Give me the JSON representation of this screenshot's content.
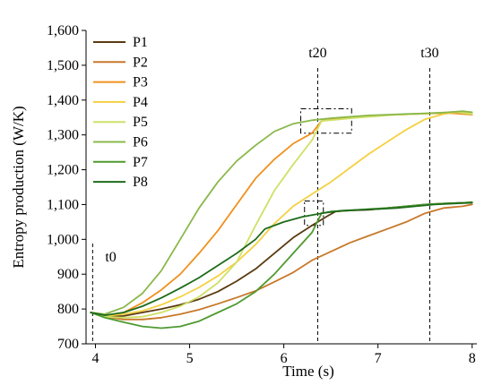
{
  "chart_data": {
    "type": "line",
    "xlabel": "Time (s)",
    "ylabel": "Entropy production (W/K)",
    "xlim": [
      3.9,
      8.05
    ],
    "ylim": [
      700,
      1600
    ],
    "x_ticks": [
      4,
      5,
      6,
      7,
      8
    ],
    "x_tick_labels": [
      "4",
      "5",
      "6",
      "7",
      "8"
    ],
    "y_ticks": [
      700,
      800,
      900,
      1000,
      1100,
      1200,
      1300,
      1400,
      1500,
      1600
    ],
    "y_tick_labels": [
      "700",
      "800",
      "900",
      "1,000",
      "1,100",
      "1,200",
      "1,300",
      "1,400",
      "1,500",
      "1,600"
    ],
    "grid": false,
    "legend_position": "top-left",
    "series": [
      {
        "name": "P1",
        "color": "#5a3a10",
        "points": [
          [
            3.95,
            790
          ],
          [
            4.1,
            778
          ],
          [
            4.3,
            780
          ],
          [
            4.5,
            790
          ],
          [
            4.7,
            800
          ],
          [
            4.9,
            812
          ],
          [
            5.1,
            828
          ],
          [
            5.3,
            850
          ],
          [
            5.5,
            880
          ],
          [
            5.7,
            915
          ],
          [
            5.9,
            960
          ],
          [
            6.1,
            1005
          ],
          [
            6.3,
            1040
          ],
          [
            6.45,
            1065
          ],
          [
            6.55,
            1080
          ],
          [
            6.7,
            1083
          ],
          [
            6.9,
            1085
          ],
          [
            7.1,
            1090
          ],
          [
            7.3,
            1095
          ],
          [
            7.5,
            1100
          ],
          [
            7.7,
            1103
          ],
          [
            7.9,
            1105
          ],
          [
            8.0,
            1106
          ]
        ]
      },
      {
        "name": "P2",
        "color": "#c8782a",
        "points": [
          [
            3.95,
            790
          ],
          [
            4.1,
            778
          ],
          [
            4.3,
            770
          ],
          [
            4.5,
            770
          ],
          [
            4.7,
            775
          ],
          [
            4.9,
            785
          ],
          [
            5.1,
            798
          ],
          [
            5.3,
            815
          ],
          [
            5.5,
            833
          ],
          [
            5.7,
            852
          ],
          [
            5.9,
            878
          ],
          [
            6.1,
            905
          ],
          [
            6.3,
            940
          ],
          [
            6.5,
            965
          ],
          [
            6.7,
            990
          ],
          [
            6.9,
            1010
          ],
          [
            7.1,
            1030
          ],
          [
            7.3,
            1050
          ],
          [
            7.5,
            1075
          ],
          [
            7.7,
            1090
          ],
          [
            7.9,
            1095
          ],
          [
            8.0,
            1100
          ]
        ]
      },
      {
        "name": "P3",
        "color": "#f0901e",
        "points": [
          [
            3.95,
            790
          ],
          [
            4.1,
            780
          ],
          [
            4.3,
            790
          ],
          [
            4.5,
            818
          ],
          [
            4.7,
            855
          ],
          [
            4.9,
            900
          ],
          [
            5.1,
            960
          ],
          [
            5.3,
            1025
          ],
          [
            5.5,
            1100
          ],
          [
            5.7,
            1175
          ],
          [
            5.9,
            1230
          ],
          [
            6.1,
            1275
          ],
          [
            6.3,
            1305
          ],
          [
            6.4,
            1340
          ],
          [
            6.6,
            1348
          ],
          [
            6.8,
            1352
          ],
          [
            7.0,
            1356
          ],
          [
            7.2,
            1358
          ],
          [
            7.4,
            1360
          ],
          [
            7.6,
            1362
          ],
          [
            7.8,
            1362
          ],
          [
            8.0,
            1358
          ]
        ]
      },
      {
        "name": "P4",
        "color": "#f5d040",
        "points": [
          [
            3.95,
            790
          ],
          [
            4.1,
            780
          ],
          [
            4.3,
            785
          ],
          [
            4.5,
            795
          ],
          [
            4.7,
            812
          ],
          [
            4.9,
            835
          ],
          [
            5.1,
            862
          ],
          [
            5.3,
            895
          ],
          [
            5.5,
            935
          ],
          [
            5.7,
            985
          ],
          [
            5.9,
            1045
          ],
          [
            6.1,
            1095
          ],
          [
            6.3,
            1130
          ],
          [
            6.5,
            1165
          ],
          [
            6.7,
            1205
          ],
          [
            6.9,
            1245
          ],
          [
            7.1,
            1280
          ],
          [
            7.3,
            1315
          ],
          [
            7.5,
            1345
          ],
          [
            7.7,
            1360
          ],
          [
            7.9,
            1367
          ],
          [
            8.0,
            1360
          ]
        ]
      },
      {
        "name": "P5",
        "color": "#cfe066",
        "points": [
          [
            3.95,
            790
          ],
          [
            4.1,
            778
          ],
          [
            4.3,
            775
          ],
          [
            4.5,
            778
          ],
          [
            4.7,
            790
          ],
          [
            4.9,
            808
          ],
          [
            5.1,
            835
          ],
          [
            5.3,
            875
          ],
          [
            5.5,
            935
          ],
          [
            5.7,
            1040
          ],
          [
            5.9,
            1140
          ],
          [
            6.1,
            1215
          ],
          [
            6.3,
            1285
          ],
          [
            6.4,
            1340
          ],
          [
            6.6,
            1345
          ],
          [
            6.8,
            1350
          ],
          [
            7.0,
            1354
          ],
          [
            7.2,
            1358
          ],
          [
            7.4,
            1360
          ],
          [
            7.6,
            1363
          ],
          [
            7.8,
            1366
          ],
          [
            8.0,
            1360
          ]
        ]
      },
      {
        "name": "P6",
        "color": "#8ab84a",
        "points": [
          [
            3.95,
            790
          ],
          [
            4.1,
            785
          ],
          [
            4.3,
            805
          ],
          [
            4.5,
            845
          ],
          [
            4.7,
            910
          ],
          [
            4.9,
            1000
          ],
          [
            5.1,
            1090
          ],
          [
            5.3,
            1165
          ],
          [
            5.5,
            1225
          ],
          [
            5.7,
            1270
          ],
          [
            5.9,
            1310
          ],
          [
            6.1,
            1332
          ],
          [
            6.3,
            1342
          ],
          [
            6.5,
            1348
          ],
          [
            6.7,
            1352
          ],
          [
            6.9,
            1356
          ],
          [
            7.1,
            1358
          ],
          [
            7.3,
            1360
          ],
          [
            7.5,
            1362
          ],
          [
            7.7,
            1364
          ],
          [
            7.9,
            1368
          ],
          [
            8.0,
            1365
          ]
        ]
      },
      {
        "name": "P7",
        "color": "#4e9a30",
        "points": [
          [
            3.95,
            790
          ],
          [
            4.1,
            775
          ],
          [
            4.3,
            762
          ],
          [
            4.5,
            750
          ],
          [
            4.7,
            745
          ],
          [
            4.9,
            750
          ],
          [
            5.1,
            765
          ],
          [
            5.3,
            790
          ],
          [
            5.5,
            815
          ],
          [
            5.7,
            850
          ],
          [
            5.9,
            900
          ],
          [
            6.1,
            960
          ],
          [
            6.3,
            1020
          ],
          [
            6.4,
            1075
          ],
          [
            6.5,
            1080
          ],
          [
            6.7,
            1083
          ],
          [
            6.9,
            1087
          ],
          [
            7.1,
            1090
          ],
          [
            7.3,
            1095
          ],
          [
            7.5,
            1100
          ],
          [
            7.7,
            1103
          ],
          [
            7.9,
            1105
          ],
          [
            8.0,
            1107
          ]
        ]
      },
      {
        "name": "P8",
        "color": "#1e6b1a",
        "points": [
          [
            3.95,
            790
          ],
          [
            4.1,
            782
          ],
          [
            4.3,
            790
          ],
          [
            4.5,
            808
          ],
          [
            4.7,
            832
          ],
          [
            4.9,
            860
          ],
          [
            5.1,
            890
          ],
          [
            5.3,
            925
          ],
          [
            5.5,
            960
          ],
          [
            5.7,
            1000
          ],
          [
            5.8,
            1030
          ],
          [
            6.0,
            1050
          ],
          [
            6.2,
            1065
          ],
          [
            6.4,
            1075
          ],
          [
            6.6,
            1082
          ],
          [
            6.8,
            1085
          ],
          [
            7.0,
            1087
          ],
          [
            7.2,
            1090
          ],
          [
            7.4,
            1095
          ],
          [
            7.6,
            1100
          ],
          [
            7.8,
            1103
          ],
          [
            8.0,
            1105
          ]
        ]
      }
    ],
    "annotations": {
      "t0": {
        "label": "t0",
        "x": 3.97
      },
      "t20": {
        "label": "t20",
        "x": 6.36
      },
      "t30": {
        "label": "t30",
        "x": 7.55
      },
      "boxes": [
        {
          "x0": 6.18,
          "x1": 6.72,
          "y0": 1305,
          "y1": 1375
        },
        {
          "x0": 6.22,
          "x1": 6.42,
          "y0": 1040,
          "y1": 1110
        }
      ]
    }
  }
}
